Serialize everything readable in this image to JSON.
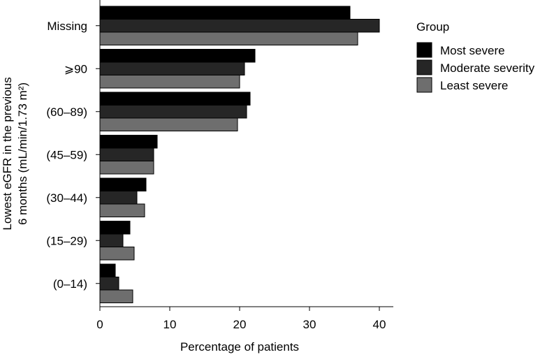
{
  "chart_data": {
    "type": "bar",
    "orientation": "horizontal",
    "title": "",
    "xlabel": "Percentage of patients",
    "ylabel_lines": [
      "Lowest eGFR in the previous",
      "6 months (mL/min/1.73 m²)"
    ],
    "xlim": [
      0,
      42
    ],
    "xticks": [
      0,
      10,
      20,
      30,
      40
    ],
    "grid": false,
    "legend_title": "Group",
    "legend_position": "right",
    "categories": [
      "Missing",
      "⩾90",
      "(60–89)",
      "(45–59)",
      "(30–44)",
      "(15–29)",
      "(0–14)"
    ],
    "series": [
      {
        "name": "Most severe",
        "color": "#000000",
        "values": [
          35.8,
          22.2,
          21.5,
          8.2,
          6.6,
          4.3,
          2.2
        ]
      },
      {
        "name": "Moderate severity",
        "color": "#262626",
        "values": [
          40.0,
          20.7,
          21.0,
          7.7,
          5.3,
          3.3,
          2.7
        ]
      },
      {
        "name": "Least severe",
        "color": "#6e6e6e",
        "values": [
          36.9,
          20.0,
          19.7,
          7.7,
          6.4,
          4.9,
          4.7
        ]
      }
    ]
  }
}
